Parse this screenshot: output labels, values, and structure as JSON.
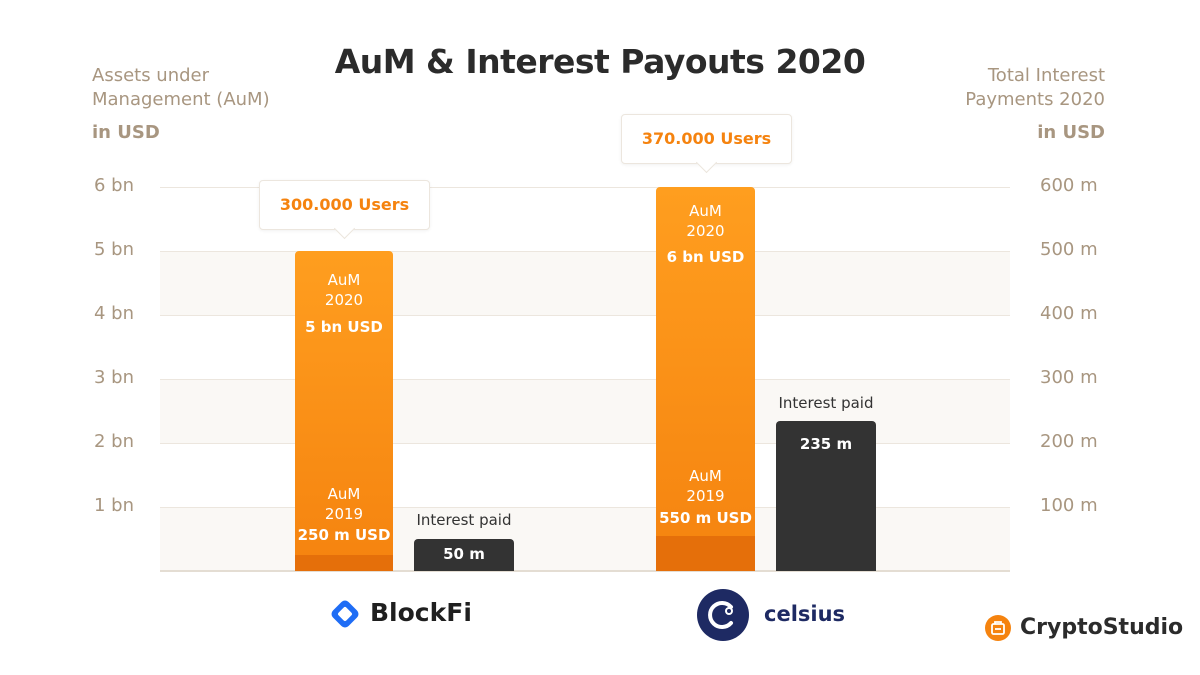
{
  "title": "AuM & Interest Payouts 2020",
  "left_axis": {
    "caption_line1": "Assets under",
    "caption_line2": "Management (AuM)",
    "unit": "in USD"
  },
  "right_axis": {
    "caption_line1": "Total Interest",
    "caption_line2": "Payments 2020",
    "unit": "in USD"
  },
  "chart_data": {
    "type": "bar",
    "title": "AuM & Interest Payouts 2020",
    "categories": [
      "BlockFi",
      "celsius"
    ],
    "y_left": {
      "label": "Assets under Management (AuM) in USD",
      "unit": "bn",
      "ylim": [
        0,
        6
      ],
      "ticks": [
        "6 bn",
        "5 bn",
        "4 bn",
        "3 bn",
        "2 bn",
        "1 bn"
      ]
    },
    "y_right": {
      "label": "Total Interest Payments 2020 in USD",
      "unit": "m",
      "ylim": [
        0,
        600
      ],
      "ticks": [
        "600 m",
        "500 m",
        "400 m",
        "300 m",
        "200 m",
        "100 m"
      ]
    },
    "series": [
      {
        "name": "AuM 2020",
        "axis": "left",
        "values": [
          5,
          6
        ],
        "data_labels": [
          "5 bn USD",
          "6 bn USD"
        ]
      },
      {
        "name": "AuM 2019",
        "axis": "left",
        "values": [
          0.25,
          0.55
        ],
        "data_labels": [
          "250 m USD",
          "550 m USD"
        ]
      },
      {
        "name": "Interest paid",
        "axis": "right",
        "values": [
          50,
          235
        ],
        "data_labels": [
          "50 m",
          "235 m"
        ]
      }
    ],
    "annotations": [
      "300.000 Users",
      "370.000 Users"
    ],
    "grid": true,
    "colors": {
      "aum_2020": "#f7901a",
      "aum_2019": "#e56f0a",
      "interest": "#333333",
      "axis_text": "#a89680"
    }
  },
  "bars": {
    "blockfi": {
      "users": "300.000 Users",
      "aum2020_line1": "AuM",
      "aum2020_line2": "2020",
      "aum2020_value": "5 bn USD",
      "aum2019_line1": "AuM",
      "aum2019_line2": "2019",
      "aum2019_value": "250 m USD",
      "interest_caption": "Interest paid",
      "interest_value": "50 m"
    },
    "celsius": {
      "users": "370.000 Users",
      "aum2020_line1": "AuM",
      "aum2020_line2": "2020",
      "aum2020_value": "6 bn USD",
      "aum2019_line1": "AuM",
      "aum2019_line2": "2019",
      "aum2019_value": "550 m USD",
      "interest_caption": "Interest paid",
      "interest_value": "235 m"
    }
  },
  "brands": {
    "blockfi": {
      "name": "BlockFi",
      "icon": "blockfi-logo-icon",
      "color": "#1f6df5"
    },
    "celsius": {
      "name": "celsius",
      "icon": "celsius-logo-icon",
      "color": "#1e2a63"
    },
    "cryptostudio": {
      "name": "CryptoStudio",
      "icon": "cryptostudio-logo-icon",
      "color": "#f5830f"
    }
  }
}
